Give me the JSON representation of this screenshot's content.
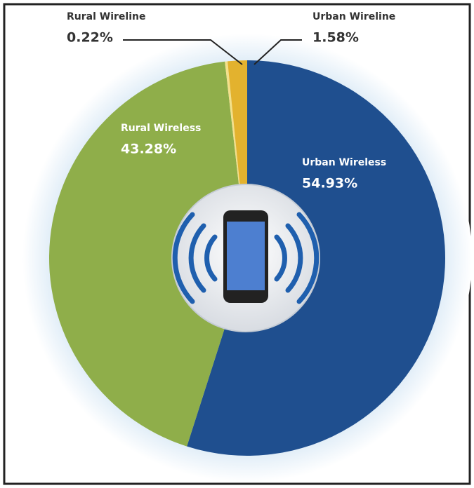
{
  "chart_data": {
    "type": "pie",
    "categories": [
      "Urban Wireless",
      "Rural Wireless",
      "Rural Wireline",
      "Urban Wireline"
    ],
    "values": [
      54.93,
      43.28,
      0.22,
      1.58
    ],
    "value_labels": [
      "54.93%",
      "43.28%",
      "0.22%",
      "1.58%"
    ],
    "colors": [
      "#1f4f8f",
      "#8fae4a",
      "#f4e08a",
      "#e3b22e"
    ]
  }
}
